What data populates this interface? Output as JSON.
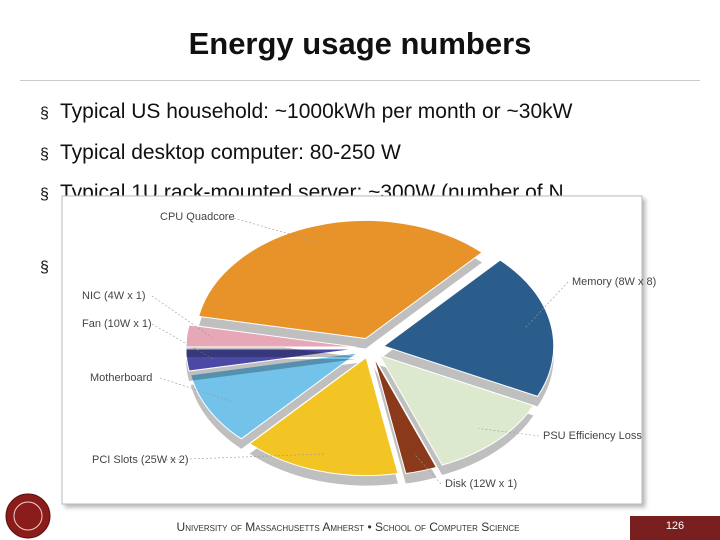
{
  "title": "Energy usage numbers",
  "bullets": [
    "Typical US household: ~1000kWh per month or ~30kW",
    "Typical desktop computer: 80-250 W",
    "Typical 1U rack-mounted server: ~300W (number of N"
  ],
  "chart_data": {
    "type": "pie",
    "categories": [
      "CPU Quadcore",
      "Memory (8W x 8)",
      "PSU Efficiency Loss",
      "Disk (12W x 1)",
      "PCI Slots (25W x 2)",
      "Motherboard",
      "Fan (10W x 1)",
      "NIC (4W x 1)"
    ],
    "values": [
      34,
      20,
      12,
      3,
      15,
      10,
      3,
      3
    ],
    "colors": [
      "#e8922a",
      "#2b5d8c",
      "#dde9cf",
      "#8a3a1a",
      "#f2c424",
      "#72c2ea",
      "#4a4aa6",
      "#e6a8b6"
    ]
  },
  "footer": "University of Massachusetts Amherst • School of Computer Science",
  "page_number": "126"
}
